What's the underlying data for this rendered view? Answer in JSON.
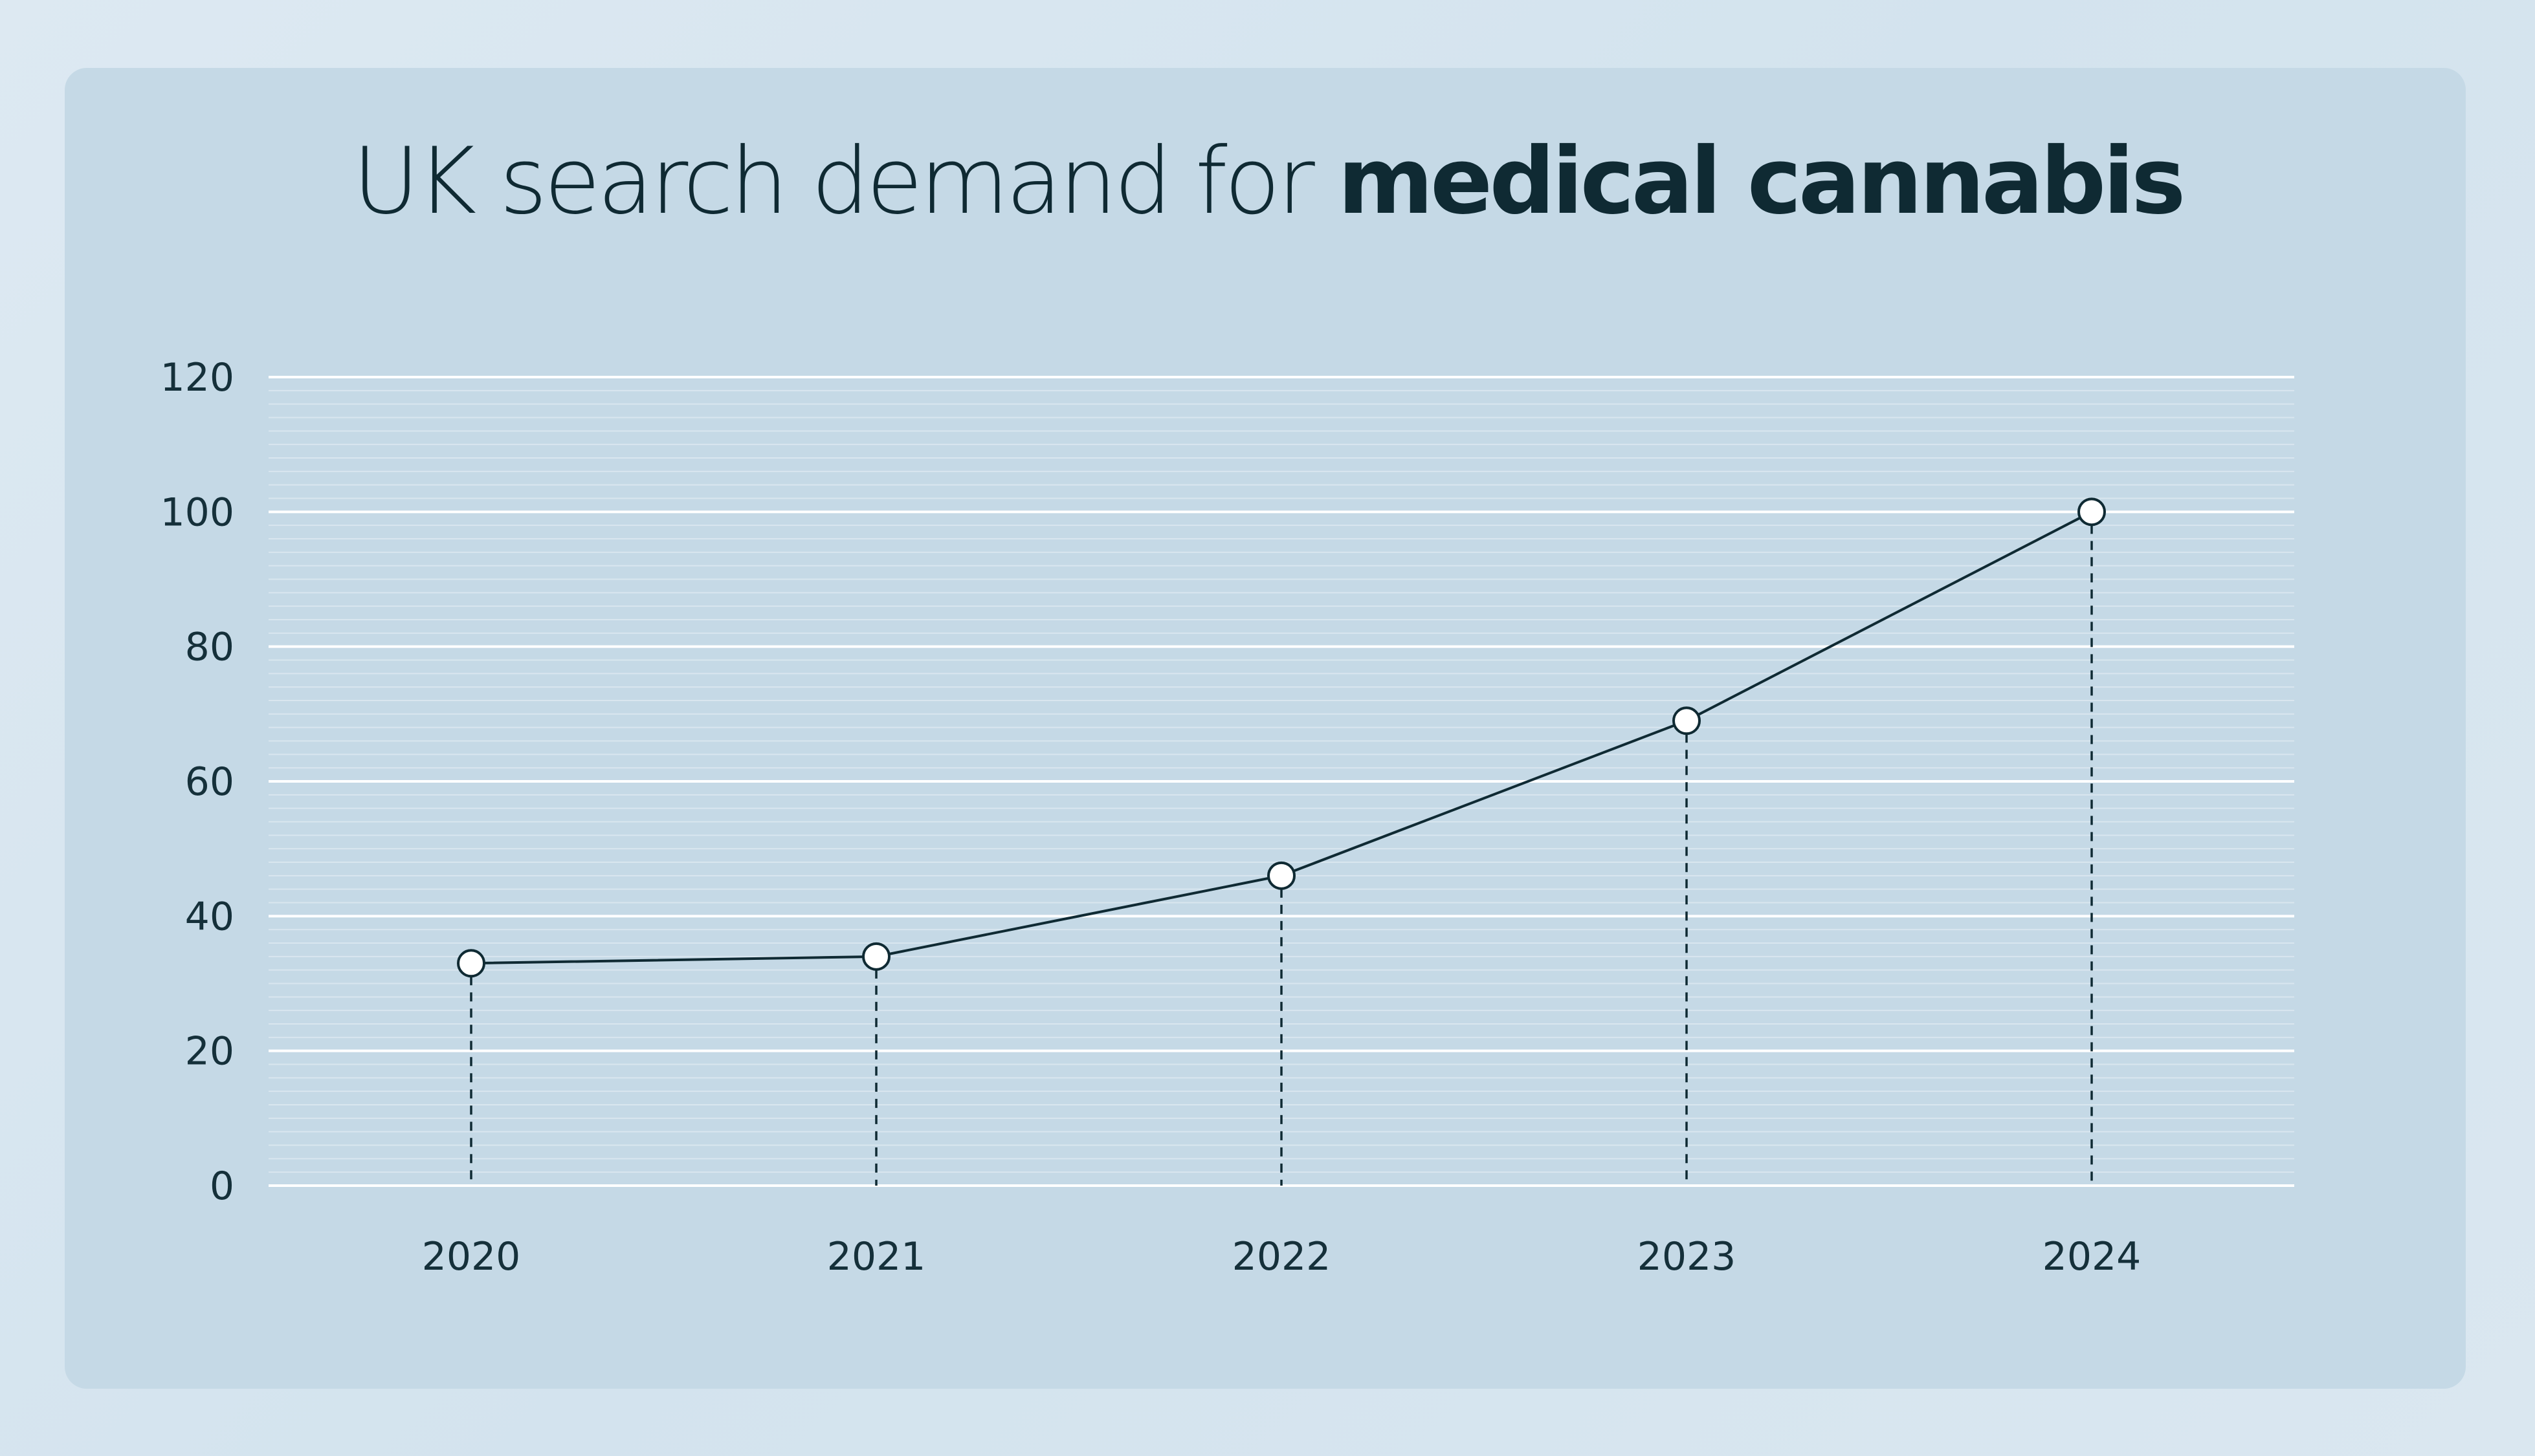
{
  "title": {
    "light": "UK search demand for ",
    "bold": "medical cannabis"
  },
  "colors": {
    "page_background": "#d3e3ee",
    "card": "#c5d9e6",
    "major_grid": "#ffffff",
    "minor_grid": "#d9e6ef",
    "line": "#0f2a33",
    "marker_fill": "#ffffff",
    "text": "#15303a"
  },
  "chart_data": {
    "type": "line",
    "title": "UK search demand for medical cannabis",
    "xlabel": "",
    "ylabel": "",
    "categories": [
      "2020",
      "2021",
      "2022",
      "2023",
      "2024"
    ],
    "series": [
      {
        "values": [
          33,
          34,
          46,
          69,
          100
        ]
      }
    ],
    "ylim": [
      0,
      120
    ],
    "yticks": [
      0,
      20,
      40,
      60,
      80,
      100,
      120
    ],
    "ytick_labels": [
      "0",
      "20",
      "40",
      "60",
      "80",
      "100",
      "120"
    ],
    "minor_grid_step": 2,
    "grid": true,
    "markers": "open-circle",
    "drop_lines": "dashed",
    "legend": "none"
  }
}
